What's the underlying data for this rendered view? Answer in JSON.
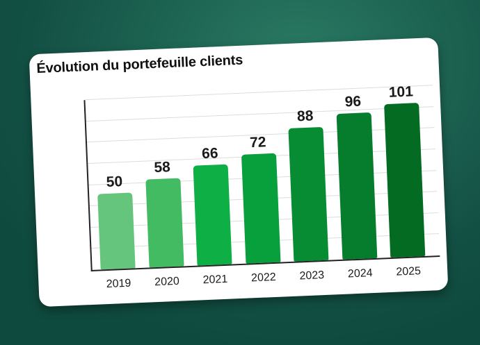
{
  "card": {
    "title": "Évolution du portefeuille clients"
  },
  "chart_data": {
    "type": "bar",
    "title": "Évolution du portefeuille clients",
    "xlabel": "",
    "ylabel": "",
    "categories": [
      "2019",
      "2020",
      "2021",
      "2022",
      "2023",
      "2024",
      "2025"
    ],
    "values": [
      50,
      58,
      66,
      72,
      88,
      96,
      101
    ],
    "ylim": [
      0,
      112
    ],
    "grid": true,
    "gridline_count": 8,
    "show_y_tick_labels": false,
    "data_labels": true,
    "legend": "none",
    "bar_colors": [
      "#66c57c",
      "#43bb63",
      "#0eaf45",
      "#07a03c",
      "#078c34",
      "#057d2c",
      "#036b22"
    ]
  }
}
